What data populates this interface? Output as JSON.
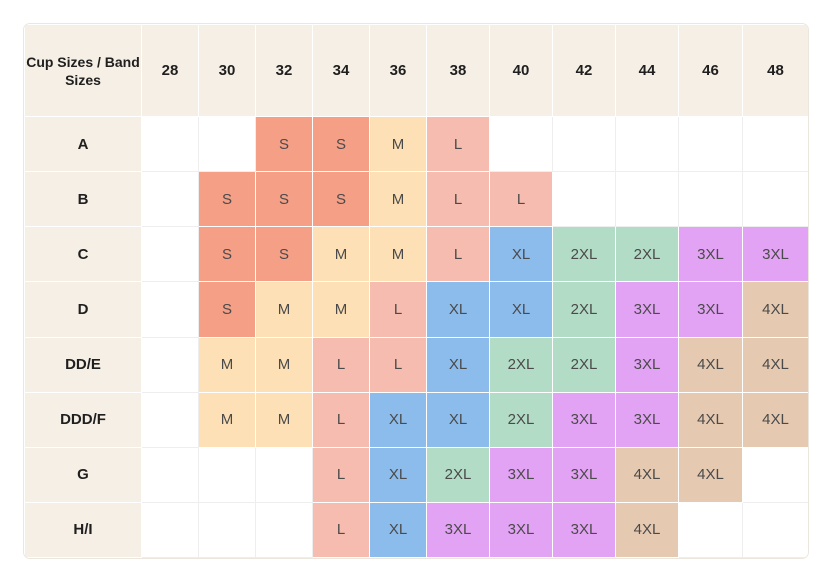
{
  "colors": {
    "header_bg": "#f6efe5",
    "S": "#f59f87",
    "M": "#fde0b6",
    "L": "#f6bcb0",
    "XL": "#8cbcec",
    "2XL": "#b3dcc6",
    "3XL": "#e3a3f4",
    "4XL": "#e6c9b1"
  },
  "chart_data": {
    "type": "table",
    "corner_label": "Cup Sizes / Band Sizes",
    "columns": [
      "28",
      "30",
      "32",
      "34",
      "36",
      "38",
      "40",
      "42",
      "44",
      "46",
      "48"
    ],
    "rows": [
      {
        "cup": "A",
        "cells": [
          "",
          "",
          "S",
          "S",
          "M",
          "L",
          "",
          "",
          "",
          "",
          ""
        ]
      },
      {
        "cup": "B",
        "cells": [
          "",
          "S",
          "S",
          "S",
          "M",
          "L",
          "L",
          "",
          "",
          "",
          ""
        ]
      },
      {
        "cup": "C",
        "cells": [
          "",
          "S",
          "S",
          "M",
          "M",
          "L",
          "XL",
          "2XL",
          "2XL",
          "3XL",
          "3XL"
        ]
      },
      {
        "cup": "D",
        "cells": [
          "",
          "S",
          "M",
          "M",
          "L",
          "XL",
          "XL",
          "2XL",
          "3XL",
          "3XL",
          "4XL"
        ]
      },
      {
        "cup": "DD/E",
        "cells": [
          "",
          "M",
          "M",
          "L",
          "L",
          "XL",
          "2XL",
          "2XL",
          "3XL",
          "4XL",
          "4XL"
        ]
      },
      {
        "cup": "DDD/F",
        "cells": [
          "",
          "M",
          "M",
          "L",
          "XL",
          "XL",
          "2XL",
          "3XL",
          "3XL",
          "4XL",
          "4XL"
        ]
      },
      {
        "cup": "G",
        "cells": [
          "",
          "",
          "",
          "L",
          "XL",
          "2XL",
          "3XL",
          "3XL",
          "4XL",
          "4XL",
          ""
        ]
      },
      {
        "cup": "H/I",
        "cells": [
          "",
          "",
          "",
          "L",
          "XL",
          "3XL",
          "3XL",
          "3XL",
          "4XL",
          "",
          ""
        ]
      }
    ]
  }
}
